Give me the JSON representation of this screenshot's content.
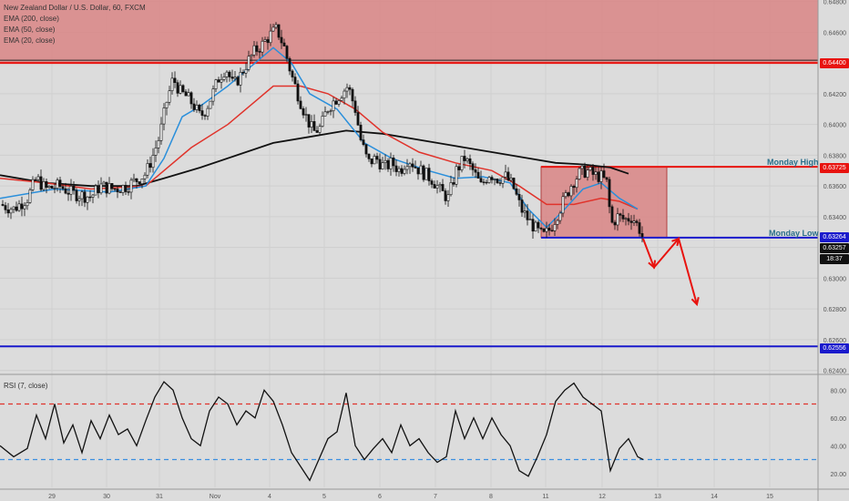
{
  "header": {
    "title": "New Zealand Dollar / U.S. Dollar, 60, FXCM",
    "ind1": "EMA (200, close)",
    "ind2": "EMA (50, close)",
    "ind3": "EMA (20, close)"
  },
  "rsi_label": "RSI (7, close)",
  "labels": {
    "monday_high": "Monday High",
    "monday_low": "Monday Low"
  },
  "price_tags": {
    "resistance": "0.64400",
    "monday_high": "0.63725",
    "monday_low": "0.63264",
    "current": "0.63257",
    "countdown": "18:37",
    "support": "0.62556"
  },
  "colors": {
    "zone": "#d98585",
    "red_line": "#e8130f",
    "blue_line": "#1a1acc",
    "ema200": "#111111",
    "ema50": "#e0332b",
    "ema20": "#2a8fdb",
    "rsi_line": "#111111",
    "rsi_upper": "#e0332b",
    "rsi_lower": "#3a8fe0",
    "arrow": "#e8130f"
  },
  "chart_data": {
    "type": "candlestick",
    "price_axis": {
      "ticks": [
        "0.64800",
        "0.64600",
        "0.64400",
        "0.64200",
        "0.64000",
        "0.63800",
        "0.63600",
        "0.63400",
        "0.63200",
        "0.63000",
        "0.62800",
        "0.62600",
        "0.62400"
      ],
      "range": [
        0.6238,
        0.6481
      ]
    },
    "time_axis": {
      "ticks": [
        "29",
        "30",
        "31",
        "Nov",
        "4",
        "5",
        "6",
        "7",
        "8",
        "11",
        "12",
        "13",
        "14",
        "15"
      ]
    },
    "levels": {
      "resistance": 0.644,
      "monday_high": 0.63725,
      "monday_low": 0.63264,
      "support": 0.62556,
      "current": 0.63257
    },
    "resistance_zone": [
      0.644,
      0.6481
    ],
    "monday_box": {
      "start_tick": "11",
      "end_tick": "13",
      "top": 0.63725,
      "bottom": 0.63264
    },
    "price_path": [
      [
        0.0,
        0.6348
      ],
      [
        1.5,
        0.6345
      ],
      [
        3.0,
        0.6352
      ],
      [
        4.0,
        0.6365
      ],
      [
        5.0,
        0.6358
      ],
      [
        6.5,
        0.636
      ],
      [
        8.0,
        0.6355
      ],
      [
        10.0,
        0.6353
      ],
      [
        11.0,
        0.636
      ],
      [
        12.5,
        0.6358
      ],
      [
        14.0,
        0.636
      ],
      [
        16.0,
        0.6368
      ],
      [
        16.8,
        0.638
      ],
      [
        17.5,
        0.6392
      ],
      [
        18.3,
        0.6415
      ],
      [
        19.0,
        0.643
      ],
      [
        19.8,
        0.6421
      ],
      [
        20.5,
        0.6418
      ],
      [
        21.2,
        0.6413
      ],
      [
        22.0,
        0.6405
      ],
      [
        22.6,
        0.641
      ],
      [
        23.2,
        0.6418
      ],
      [
        24.0,
        0.643
      ],
      [
        24.8,
        0.6437
      ],
      [
        25.6,
        0.6425
      ],
      [
        26.4,
        0.6432
      ],
      [
        27.1,
        0.644
      ],
      [
        28.0,
        0.6448
      ],
      [
        28.8,
        0.6452
      ],
      [
        29.6,
        0.6458
      ],
      [
        30.4,
        0.6462
      ],
      [
        31.2,
        0.645
      ],
      [
        32.0,
        0.6432
      ],
      [
        32.8,
        0.6418
      ],
      [
        33.6,
        0.6405
      ],
      [
        34.4,
        0.6395
      ],
      [
        35.2,
        0.6398
      ],
      [
        35.9,
        0.641
      ],
      [
        36.6,
        0.6415
      ],
      [
        37.4,
        0.642
      ],
      [
        38.2,
        0.6425
      ],
      [
        39.0,
        0.641
      ],
      [
        39.6,
        0.639
      ],
      [
        40.4,
        0.6375
      ],
      [
        41.3,
        0.6378
      ],
      [
        42.2,
        0.6372
      ],
      [
        43.0,
        0.6375
      ],
      [
        43.9,
        0.637
      ],
      [
        44.8,
        0.6378
      ],
      [
        45.7,
        0.6372
      ],
      [
        46.6,
        0.6368
      ],
      [
        47.5,
        0.6364
      ],
      [
        48.3,
        0.6357
      ],
      [
        49.2,
        0.6352
      ],
      [
        50.1,
        0.637
      ],
      [
        51.0,
        0.6378
      ],
      [
        51.9,
        0.637
      ],
      [
        52.8,
        0.636
      ],
      [
        53.7,
        0.6368
      ],
      [
        54.6,
        0.6365
      ],
      [
        55.5,
        0.6366
      ],
      [
        56.3,
        0.636
      ],
      [
        57.2,
        0.6345
      ],
      [
        58.0,
        0.6338
      ],
      [
        58.8,
        0.6332
      ],
      [
        59.6,
        0.6327
      ],
      [
        60.4,
        0.6332
      ],
      [
        61.2,
        0.6342
      ],
      [
        62.0,
        0.6352
      ],
      [
        62.8,
        0.6362
      ],
      [
        63.6,
        0.6368
      ],
      [
        64.4,
        0.637
      ],
      [
        65.2,
        0.6367
      ],
      [
        66.0,
        0.6366
      ],
      [
        66.6,
        0.6362
      ],
      [
        67.1,
        0.6335
      ],
      [
        67.8,
        0.634
      ],
      [
        68.6,
        0.6338
      ],
      [
        69.4,
        0.634
      ],
      [
        70.2,
        0.6332
      ],
      [
        70.6,
        0.63257
      ]
    ],
    "ema20": [
      [
        0,
        0.6352
      ],
      [
        6,
        0.6358
      ],
      [
        12,
        0.6356
      ],
      [
        16,
        0.636
      ],
      [
        18,
        0.6378
      ],
      [
        20,
        0.6405
      ],
      [
        22,
        0.6412
      ],
      [
        25,
        0.6425
      ],
      [
        28,
        0.644
      ],
      [
        30,
        0.645
      ],
      [
        32,
        0.644
      ],
      [
        34,
        0.642
      ],
      [
        37,
        0.641
      ],
      [
        40,
        0.6388
      ],
      [
        43,
        0.6378
      ],
      [
        47,
        0.637
      ],
      [
        50,
        0.6365
      ],
      [
        53,
        0.6366
      ],
      [
        56,
        0.6362
      ],
      [
        58,
        0.6345
      ],
      [
        60,
        0.6333
      ],
      [
        62,
        0.6345
      ],
      [
        64,
        0.6358
      ],
      [
        66,
        0.6362
      ],
      [
        68,
        0.6352
      ],
      [
        70,
        0.6345
      ]
    ],
    "ema50": [
      [
        0,
        0.6365
      ],
      [
        5,
        0.6362
      ],
      [
        10,
        0.6358
      ],
      [
        16,
        0.636
      ],
      [
        18,
        0.637
      ],
      [
        21,
        0.6385
      ],
      [
        25,
        0.64
      ],
      [
        28,
        0.6415
      ],
      [
        30,
        0.6425
      ],
      [
        33,
        0.6425
      ],
      [
        36,
        0.642
      ],
      [
        39,
        0.641
      ],
      [
        42,
        0.6395
      ],
      [
        46,
        0.6382
      ],
      [
        50,
        0.6375
      ],
      [
        54,
        0.637
      ],
      [
        57,
        0.636
      ],
      [
        60,
        0.6348
      ],
      [
        63,
        0.6348
      ],
      [
        66,
        0.6352
      ],
      [
        68,
        0.635
      ],
      [
        70,
        0.6345
      ]
    ],
    "ema200": [
      [
        0,
        0.6367
      ],
      [
        5,
        0.6362
      ],
      [
        10,
        0.636
      ],
      [
        15,
        0.636
      ],
      [
        18,
        0.6365
      ],
      [
        22,
        0.6372
      ],
      [
        26,
        0.638
      ],
      [
        30,
        0.6388
      ],
      [
        34,
        0.6392
      ],
      [
        38,
        0.6396
      ],
      [
        42,
        0.6394
      ],
      [
        46,
        0.639
      ],
      [
        50,
        0.6386
      ],
      [
        54,
        0.6382
      ],
      [
        58,
        0.6378
      ],
      [
        61,
        0.6375
      ],
      [
        64,
        0.6374
      ],
      [
        67,
        0.6372
      ],
      [
        69,
        0.6368
      ]
    ],
    "projection_arrow": [
      [
        70.6,
        0.63257
      ],
      [
        71.8,
        0.6307
      ],
      [
        74.5,
        0.63257
      ],
      [
        76.5,
        0.6283
      ]
    ],
    "rsi": {
      "range": [
        10,
        90
      ],
      "levels": [
        70,
        30
      ],
      "ticks": [
        "80.00",
        "60.00",
        "40.00",
        "20.00"
      ],
      "values": [
        [
          0,
          40
        ],
        [
          1.5,
          32
        ],
        [
          3,
          38
        ],
        [
          4,
          62
        ],
        [
          5,
          45
        ],
        [
          6,
          70
        ],
        [
          7,
          42
        ],
        [
          8,
          55
        ],
        [
          9,
          35
        ],
        [
          10,
          58
        ],
        [
          11,
          45
        ],
        [
          12,
          62
        ],
        [
          13,
          48
        ],
        [
          14,
          52
        ],
        [
          15,
          40
        ],
        [
          16,
          58
        ],
        [
          17,
          75
        ],
        [
          18,
          86
        ],
        [
          19,
          80
        ],
        [
          20,
          60
        ],
        [
          21,
          45
        ],
        [
          22,
          40
        ],
        [
          23,
          65
        ],
        [
          24,
          75
        ],
        [
          25,
          70
        ],
        [
          26,
          55
        ],
        [
          27,
          65
        ],
        [
          28,
          60
        ],
        [
          29,
          80
        ],
        [
          30,
          72
        ],
        [
          31,
          55
        ],
        [
          32,
          35
        ],
        [
          33,
          25
        ],
        [
          34,
          15
        ],
        [
          35,
          30
        ],
        [
          36,
          45
        ],
        [
          37,
          50
        ],
        [
          38,
          78
        ],
        [
          39,
          40
        ],
        [
          40,
          30
        ],
        [
          41,
          38
        ],
        [
          42,
          45
        ],
        [
          43,
          35
        ],
        [
          44,
          55
        ],
        [
          45,
          40
        ],
        [
          46,
          45
        ],
        [
          47,
          35
        ],
        [
          48,
          28
        ],
        [
          49,
          32
        ],
        [
          50,
          65
        ],
        [
          51,
          45
        ],
        [
          52,
          60
        ],
        [
          53,
          45
        ],
        [
          54,
          60
        ],
        [
          55,
          48
        ],
        [
          56,
          40
        ],
        [
          57,
          22
        ],
        [
          58,
          18
        ],
        [
          59,
          32
        ],
        [
          60,
          48
        ],
        [
          61,
          72
        ],
        [
          62,
          80
        ],
        [
          63,
          85
        ],
        [
          64,
          75
        ],
        [
          65,
          70
        ],
        [
          66,
          65
        ],
        [
          67,
          22
        ],
        [
          68,
          38
        ],
        [
          69,
          45
        ],
        [
          70,
          32
        ],
        [
          70.6,
          30
        ]
      ]
    }
  }
}
